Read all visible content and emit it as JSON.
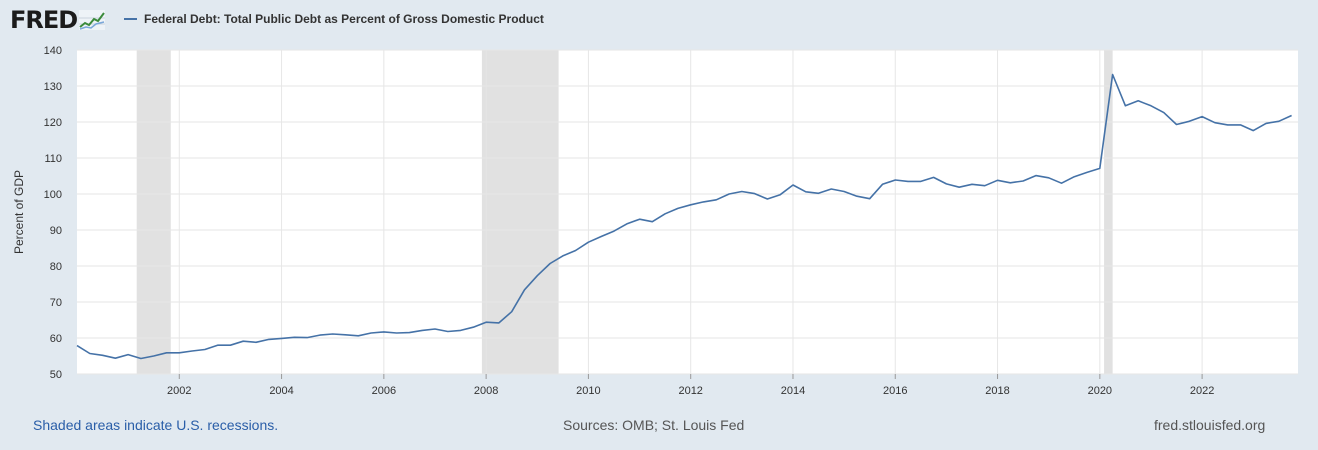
{
  "header": {
    "logo_text": "FRED",
    "legend_label": "Federal Debt: Total Public Debt as Percent of Gross Domestic Product"
  },
  "footer": {
    "recession_note": "Shaded areas indicate U.S. recessions.",
    "sources": "Sources: OMB; St. Louis Fed",
    "site": "fred.stlouisfed.org"
  },
  "chart_data": {
    "type": "line",
    "title": "Federal Debt: Total Public Debt as Percent of Gross Domestic Product",
    "ylabel": "Percent of GDP",
    "xlabel": "",
    "ylim": [
      50,
      140
    ],
    "xlim": [
      2000.0,
      2023.875
    ],
    "yticks": [
      50,
      60,
      70,
      80,
      90,
      100,
      110,
      120,
      130,
      140
    ],
    "xticks": [
      2002,
      2004,
      2006,
      2008,
      2010,
      2012,
      2014,
      2016,
      2018,
      2020,
      2022
    ],
    "grid": true,
    "line_color": "#4572a7",
    "recession_color": "#e1e1e1",
    "recessions": [
      [
        2001.167,
        2001.833
      ],
      [
        2007.917,
        2009.417
      ],
      [
        2020.083,
        2020.25
      ]
    ],
    "series": [
      {
        "name": "Federal Debt: Total Public Debt as Percent of Gross Domestic Product",
        "x": [
          2000.0,
          2000.25,
          2000.5,
          2000.75,
          2001.0,
          2001.25,
          2001.5,
          2001.75,
          2002.0,
          2002.25,
          2002.5,
          2002.75,
          2003.0,
          2003.25,
          2003.5,
          2003.75,
          2004.0,
          2004.25,
          2004.5,
          2004.75,
          2005.0,
          2005.25,
          2005.5,
          2005.75,
          2006.0,
          2006.25,
          2006.5,
          2006.75,
          2007.0,
          2007.25,
          2007.5,
          2007.75,
          2008.0,
          2008.25,
          2008.5,
          2008.75,
          2009.0,
          2009.25,
          2009.5,
          2009.75,
          2010.0,
          2010.25,
          2010.5,
          2010.75,
          2011.0,
          2011.25,
          2011.5,
          2011.75,
          2012.0,
          2012.25,
          2012.5,
          2012.75,
          2013.0,
          2013.25,
          2013.5,
          2013.75,
          2014.0,
          2014.25,
          2014.5,
          2014.75,
          2015.0,
          2015.25,
          2015.5,
          2015.75,
          2016.0,
          2016.25,
          2016.5,
          2016.75,
          2017.0,
          2017.25,
          2017.5,
          2017.75,
          2018.0,
          2018.25,
          2018.5,
          2018.75,
          2019.0,
          2019.25,
          2019.5,
          2019.75,
          2020.0,
          2020.25,
          2020.5,
          2020.75,
          2021.0,
          2021.25,
          2021.5,
          2021.75,
          2022.0,
          2022.25,
          2022.5,
          2022.75,
          2023.0,
          2023.25,
          2023.5,
          2023.75
        ],
        "values": [
          57.9,
          55.7,
          55.2,
          54.4,
          55.4,
          54.3,
          55.0,
          55.9,
          55.9,
          56.4,
          56.8,
          58.0,
          58.0,
          59.1,
          58.8,
          59.6,
          59.9,
          60.2,
          60.1,
          60.8,
          61.1,
          60.9,
          60.6,
          61.4,
          61.7,
          61.4,
          61.5,
          62.1,
          62.5,
          61.8,
          62.1,
          63.0,
          64.4,
          64.2,
          67.3,
          73.4,
          77.3,
          80.7,
          82.8,
          84.3,
          86.6,
          88.2,
          89.7,
          91.7,
          93.0,
          92.3,
          94.5,
          96.0,
          97.0,
          97.8,
          98.4,
          100.0,
          100.7,
          100.1,
          98.6,
          99.8,
          102.5,
          100.6,
          100.2,
          101.4,
          100.7,
          99.4,
          98.7,
          102.7,
          103.9,
          103.5,
          103.5,
          104.6,
          102.8,
          101.9,
          102.7,
          102.3,
          103.8,
          103.1,
          103.6,
          105.1,
          104.5,
          103.0,
          104.8,
          106.0,
          107.1,
          133.2,
          124.5,
          125.9,
          124.5,
          122.6,
          119.3,
          120.2,
          121.5,
          119.8,
          119.2,
          119.2,
          117.6,
          119.6,
          120.2,
          121.8
        ]
      }
    ]
  }
}
